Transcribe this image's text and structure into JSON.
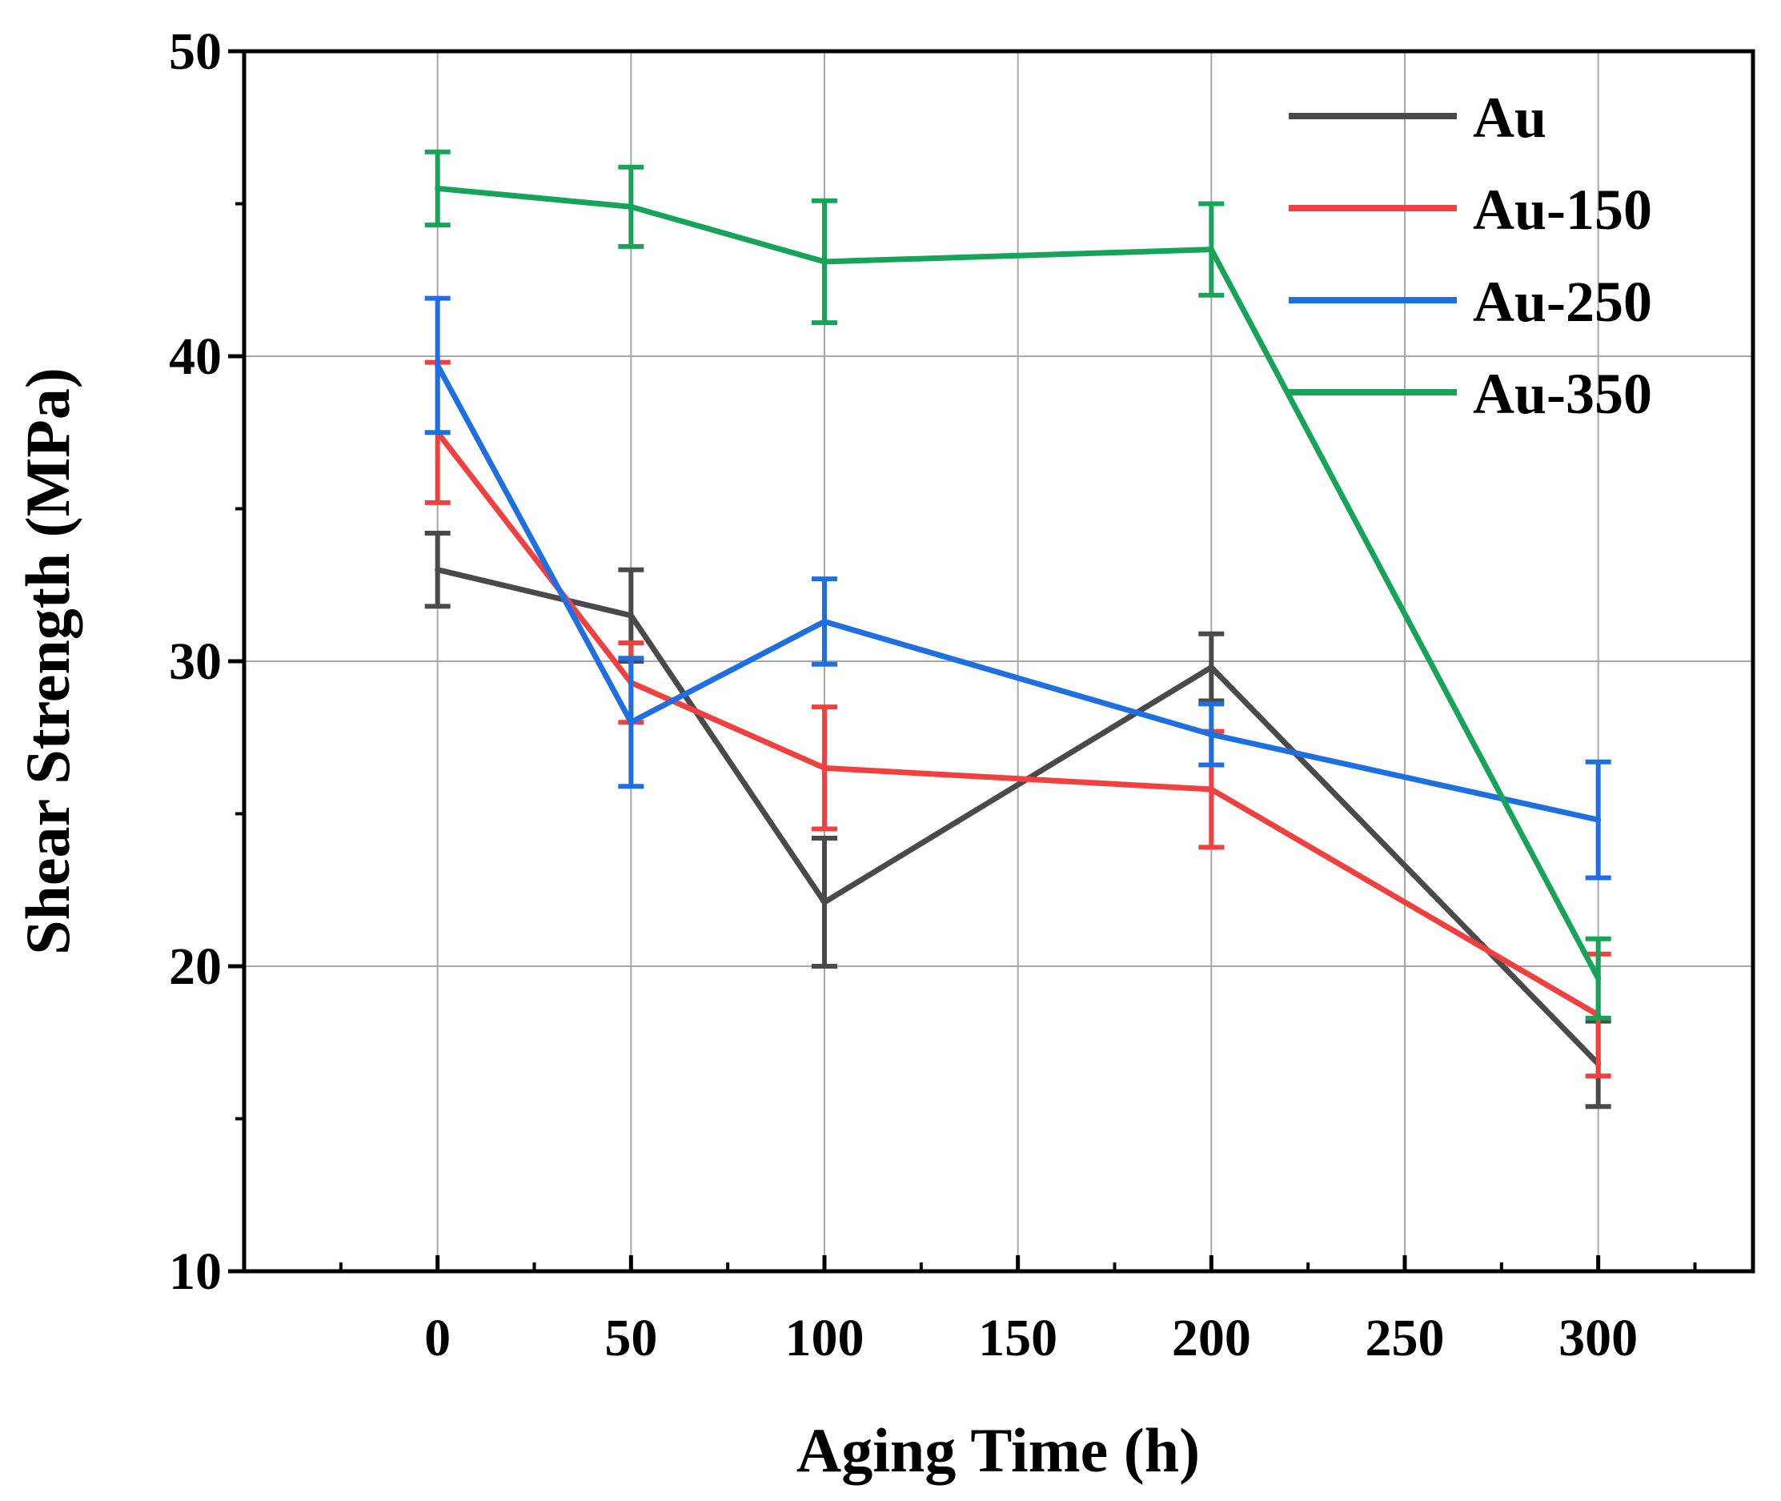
{
  "chart_data": {
    "type": "line",
    "title": "",
    "xlabel": "Aging Time (h)",
    "ylabel": "Shear Strength (MPa)",
    "xlim": [
      -50,
      340
    ],
    "ylim": [
      10,
      50
    ],
    "x_ticks": [
      0,
      50,
      100,
      150,
      200,
      250,
      300
    ],
    "y_ticks": [
      10,
      20,
      30,
      40,
      50
    ],
    "grid": true,
    "legend_position": "top-right",
    "x": [
      0,
      50,
      100,
      200,
      300
    ],
    "series": [
      {
        "name": "Au",
        "color": "#4a4a4a",
        "values": [
          33.0,
          31.5,
          22.1,
          29.8,
          16.8
        ],
        "errors": [
          1.2,
          1.5,
          2.1,
          1.1,
          1.4
        ]
      },
      {
        "name": "Au-150",
        "color": "#f04040",
        "values": [
          37.5,
          29.3,
          26.5,
          25.8,
          18.4
        ],
        "errors": [
          2.3,
          1.3,
          2.0,
          1.9,
          2.0
        ]
      },
      {
        "name": "Au-250",
        "color": "#1f6fe0",
        "values": [
          39.7,
          28.0,
          31.3,
          27.6,
          24.8
        ],
        "errors": [
          2.2,
          2.1,
          1.4,
          1.0,
          1.9
        ]
      },
      {
        "name": "Au-350",
        "color": "#17a35a",
        "values": [
          45.5,
          44.9,
          43.1,
          43.5,
          19.6
        ],
        "errors": [
          1.2,
          1.3,
          2.0,
          1.5,
          1.3
        ]
      }
    ]
  }
}
